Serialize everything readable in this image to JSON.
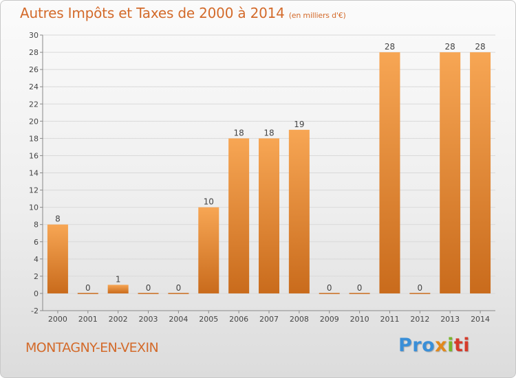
{
  "header": {
    "title": "Autres Impôts et Taxes de 2000 à 2014",
    "unit": "(en milliers d'€)"
  },
  "footer": {
    "commune": "MONTAGNY-EN-VEXIN",
    "logo_parts": [
      "Pro",
      "x",
      "i",
      "ti"
    ]
  },
  "colors": {
    "accent": "#d36a2a",
    "bar_light": "#f7a654",
    "bar_dark": "#c96b1c",
    "grid": "#d9d9d9"
  },
  "chart_data": {
    "type": "bar",
    "title": "Autres Impôts et Taxes de 2000 à 2014",
    "subtitle": "(en milliers d'€)",
    "categories": [
      "2000",
      "2001",
      "2002",
      "2003",
      "2004",
      "2005",
      "2006",
      "2007",
      "2008",
      "2009",
      "2010",
      "2011",
      "2012",
      "2013",
      "2014"
    ],
    "values": [
      8,
      0,
      1,
      0,
      0,
      10,
      18,
      18,
      19,
      0,
      0,
      28,
      0,
      28,
      28
    ],
    "ylim": [
      -2,
      30
    ],
    "yticks": [
      -2,
      0,
      2,
      4,
      6,
      8,
      10,
      12,
      14,
      16,
      18,
      20,
      22,
      24,
      26,
      28,
      30
    ],
    "grid": true,
    "xlabel": "",
    "ylabel": ""
  }
}
